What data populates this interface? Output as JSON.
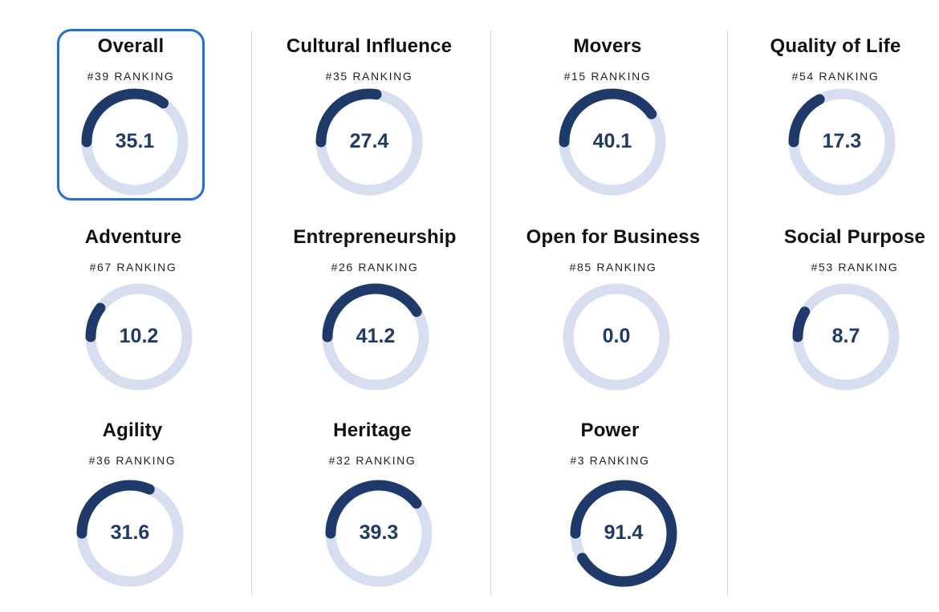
{
  "colors": {
    "track": "#d7deef",
    "arc": "#1e3a6b",
    "selected_border": "#1a6fe6",
    "divider": "#d6d6d6"
  },
  "ranking_word": "RANKING",
  "selected": "overall",
  "cards": [
    {
      "id": "overall",
      "title": "Overall",
      "rank": "#39",
      "score": "35.1",
      "value": 35.1
    },
    {
      "id": "cultural-influence",
      "title": "Cultural Influence",
      "rank": "#35",
      "score": "27.4",
      "value": 27.4
    },
    {
      "id": "movers",
      "title": "Movers",
      "rank": "#15",
      "score": "40.1",
      "value": 40.1
    },
    {
      "id": "quality-of-life",
      "title": "Quality of Life",
      "rank": "#54",
      "score": "17.3",
      "value": 17.3
    },
    {
      "id": "adventure",
      "title": "Adventure",
      "rank": "#67",
      "score": "10.2",
      "value": 10.2
    },
    {
      "id": "entrepreneurship",
      "title": "Entrepreneurship",
      "rank": "#26",
      "score": "41.2",
      "value": 41.2
    },
    {
      "id": "open-for-business",
      "title": "Open for Business",
      "rank": "#85",
      "score": "0.0",
      "value": 0.0
    },
    {
      "id": "social-purpose",
      "title": "Social Purpose",
      "rank": "#53",
      "score": "8.7",
      "value": 8.7
    },
    {
      "id": "agility",
      "title": "Agility",
      "rank": "#36",
      "score": "31.6",
      "value": 31.6
    },
    {
      "id": "heritage",
      "title": "Heritage",
      "rank": "#32",
      "score": "39.3",
      "value": 39.3
    },
    {
      "id": "power",
      "title": "Power",
      "rank": "#3",
      "score": "91.4",
      "value": 91.4
    }
  ]
}
